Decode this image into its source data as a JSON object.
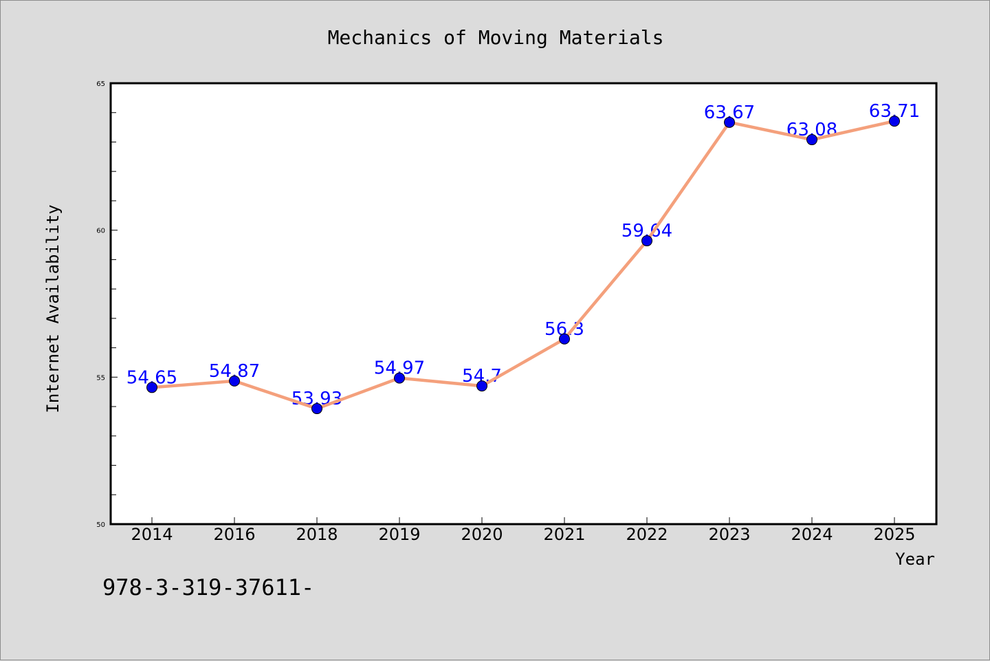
{
  "chart_data": {
    "type": "line",
    "title": "Mechanics of Moving Materials",
    "xlabel": "Year",
    "ylabel": "Internet Availability",
    "categories": [
      "2014",
      "2016",
      "2018",
      "2019",
      "2020",
      "2021",
      "2022",
      "2023",
      "2024",
      "2025"
    ],
    "series": [
      {
        "values": [
          54.65,
          54.87,
          53.93,
          54.97,
          54.7,
          56.3,
          59.64,
          63.67,
          63.08,
          63.71
        ],
        "data_labels": [
          "54.65",
          "54.87",
          "53.93",
          "54.97",
          "54.7",
          "56.3",
          "59.64",
          "63.67",
          "63.08",
          "63.71"
        ],
        "line_color": "#f4a07c",
        "marker_color": "#0000ee"
      }
    ],
    "ylim": [
      50,
      65
    ],
    "yticks": [
      "50",
      "55",
      "60",
      "65"
    ],
    "y_minor_step": 1,
    "grid": false,
    "legend": "none",
    "label_color": "#0000ff"
  },
  "footer": {
    "text": "978-3-319-37611-"
  }
}
